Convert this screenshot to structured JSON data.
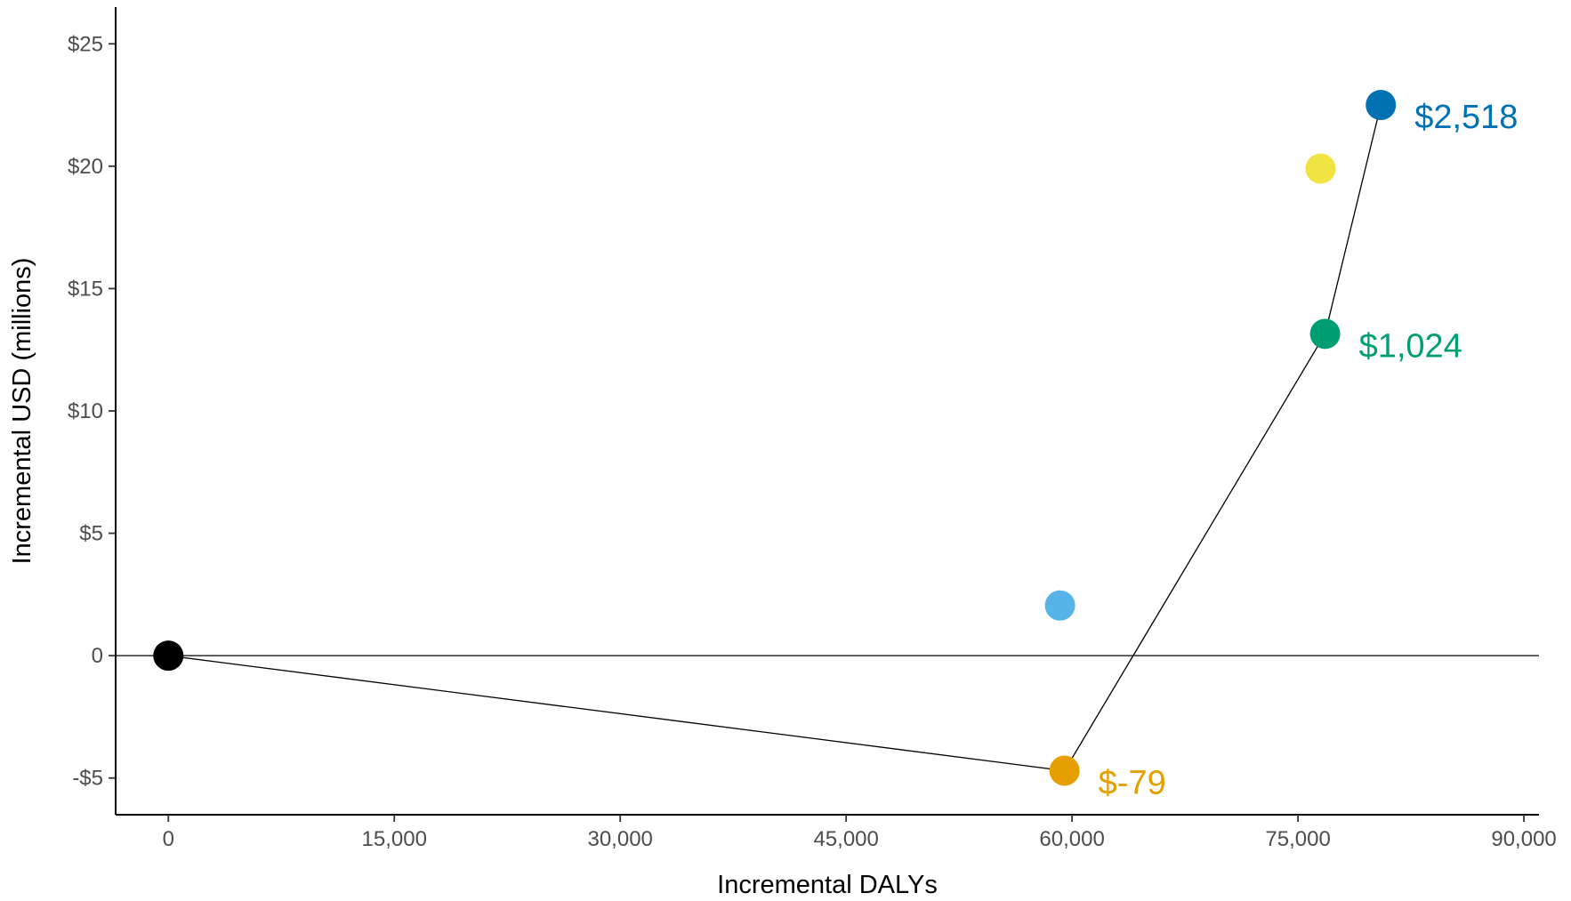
{
  "chart_data": {
    "type": "scatter",
    "title": "",
    "xlabel": "Incremental DALYs",
    "ylabel": "Incremental USD (millions)",
    "xlim": [
      -3500,
      91000
    ],
    "ylim": [
      -6.5,
      26.5
    ],
    "x_ticks": [
      0,
      15000,
      30000,
      45000,
      60000,
      75000,
      90000
    ],
    "x_tick_labels": [
      "0",
      "15,000",
      "30,000",
      "45,000",
      "60,000",
      "75,000",
      "90,000"
    ],
    "y_ticks": [
      -5,
      0,
      5,
      10,
      15,
      20,
      25
    ],
    "y_tick_labels": [
      "-$5",
      "0",
      "$5",
      "$10",
      "$15",
      "$20",
      "$25"
    ],
    "grid": false,
    "zero_line": true,
    "points": [
      {
        "x": 0,
        "y": 0,
        "color": "#000000"
      },
      {
        "x": 59500,
        "y": -4.7,
        "color": "#E69F00",
        "label": "$-79"
      },
      {
        "x": 59200,
        "y": 2.05,
        "color": "#56B4E9"
      },
      {
        "x": 76800,
        "y": 13.15,
        "color": "#009E73",
        "label": "$1,024"
      },
      {
        "x": 76500,
        "y": 19.9,
        "color": "#F0E442"
      },
      {
        "x": 80500,
        "y": 22.5,
        "color": "#0072B2",
        "label": "$2,518"
      }
    ],
    "frontier": [
      [
        0,
        0
      ],
      [
        59500,
        -4.7
      ],
      [
        76800,
        13.15
      ],
      [
        80500,
        22.5
      ]
    ]
  }
}
